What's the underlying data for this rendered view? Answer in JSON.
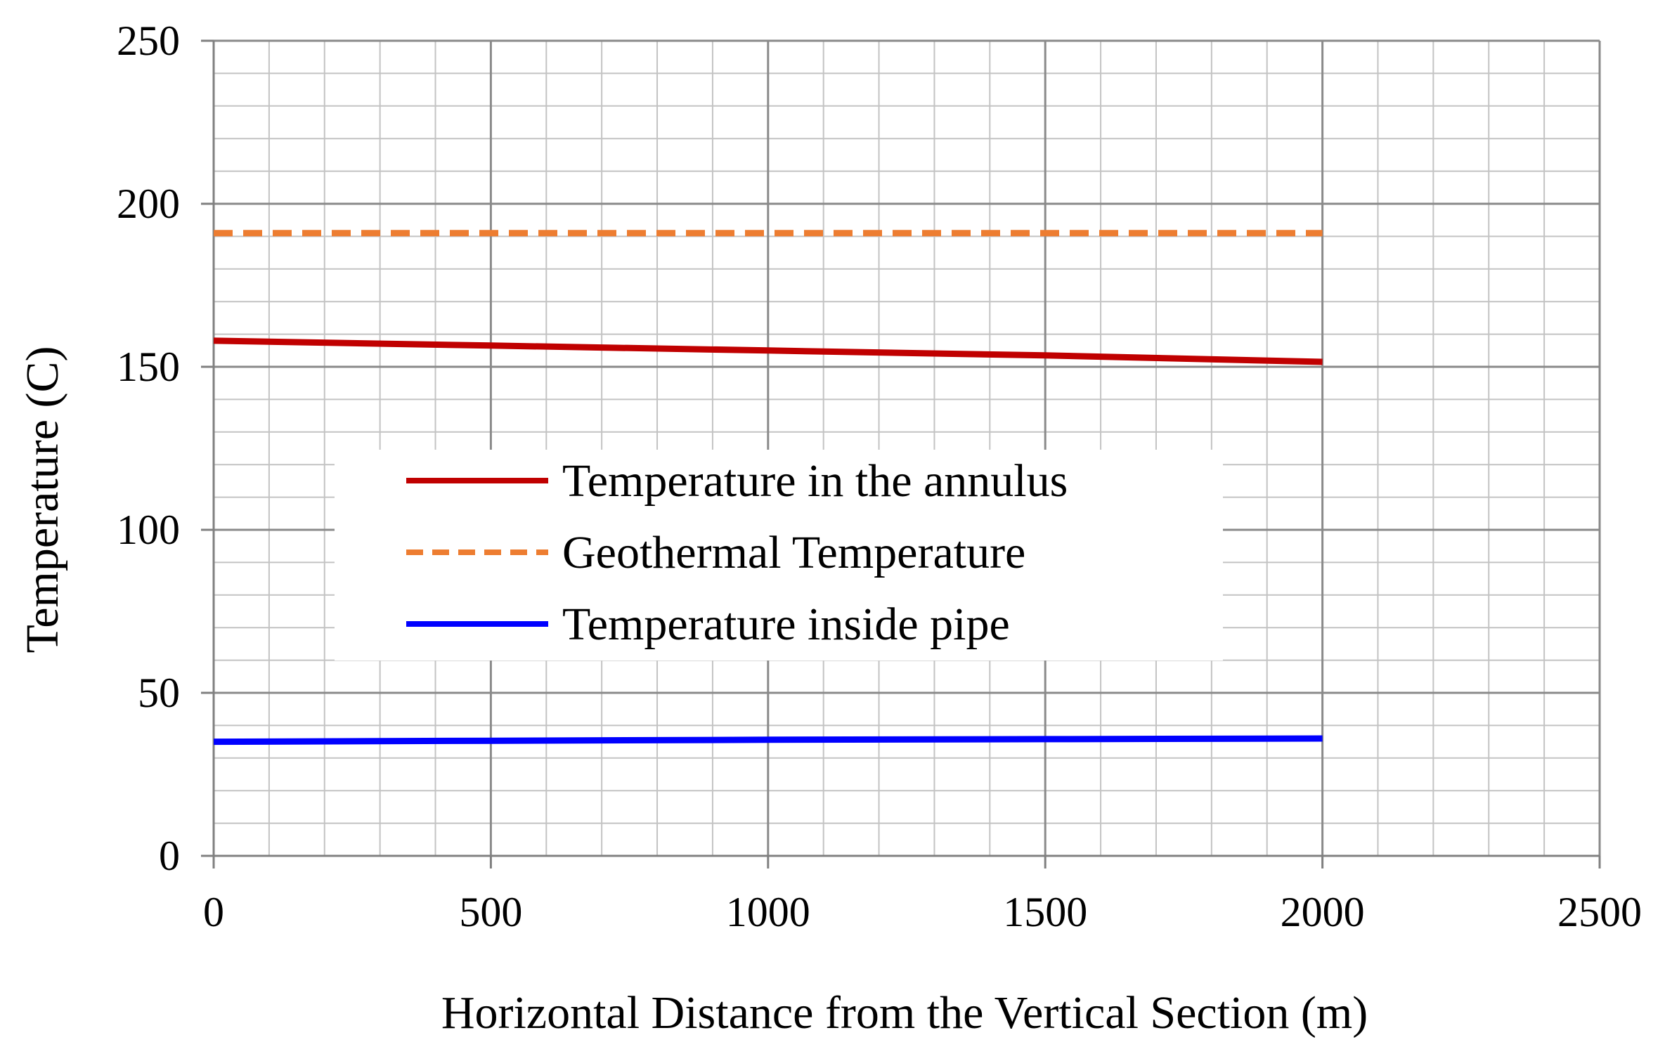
{
  "chart_data": {
    "type": "line",
    "title": "",
    "xlabel": "Horizontal Distance from the Vertical Section (m)",
    "ylabel": "Temperature (C)",
    "xlim": [
      0,
      2500
    ],
    "ylim": [
      0,
      250
    ],
    "x_major_ticks": [
      0,
      500,
      1000,
      1500,
      2000,
      2500
    ],
    "y_major_ticks": [
      0,
      50,
      100,
      150,
      200,
      250
    ],
    "x_tick_labels": [
      "0",
      "500",
      "1000",
      "1500",
      "2000",
      "2500"
    ],
    "y_tick_labels": [
      "0",
      "50",
      "100",
      "150",
      "200",
      "250"
    ],
    "x_minor_step": 100,
    "y_minor_step": 10,
    "grid": true,
    "legend_position": "center-left",
    "series": [
      {
        "name": "Temperature in the annulus",
        "color": "#c00000",
        "style": "solid",
        "x": [
          0,
          500,
          1000,
          1500,
          2000
        ],
        "y": [
          158,
          156.5,
          155,
          153.5,
          151.5
        ]
      },
      {
        "name": "Geothermal Temperature",
        "color": "#ed7d31",
        "style": "dashed",
        "x": [
          0,
          500,
          1000,
          1500,
          2000
        ],
        "y": [
          191,
          191,
          191,
          191,
          191
        ]
      },
      {
        "name": "Temperature inside pipe",
        "color": "#0000ff",
        "style": "solid",
        "x": [
          0,
          500,
          1000,
          1500,
          2000
        ],
        "y": [
          35,
          35.3,
          35.6,
          35.8,
          36
        ]
      }
    ]
  }
}
